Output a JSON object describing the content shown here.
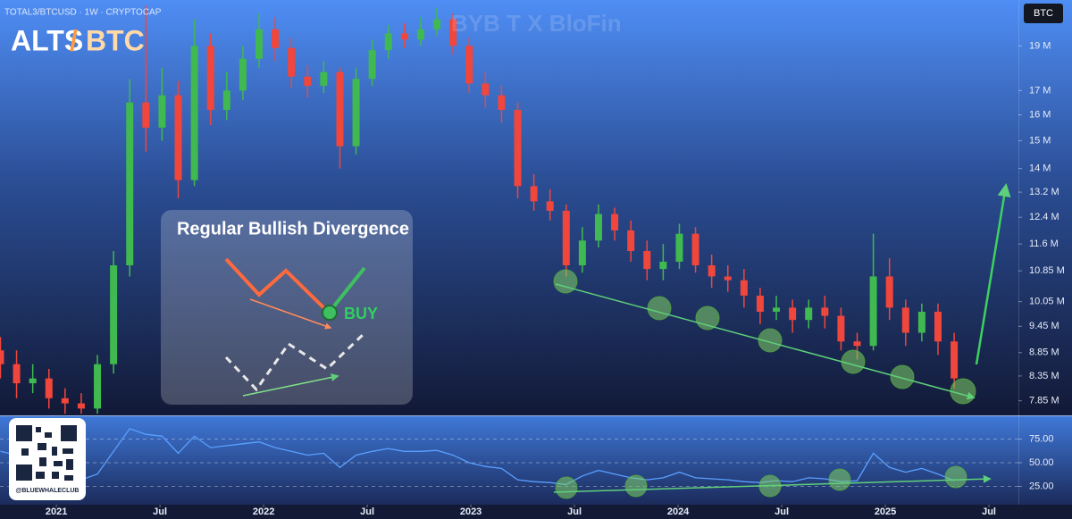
{
  "chart_data": [
    {
      "type": "candlestick",
      "title": "TOTAL3/BTCUSD · 1W · CRYPTOCAP",
      "badge": "BTC",
      "watermark": "BYB T X BloFin",
      "annotations": {
        "alts": "ALTS",
        "slash": "/",
        "btc": "BTC",
        "box_title": "Regular Bullish Divergence",
        "buy": "BUY",
        "handle": "@BLUEWHALECLUB"
      },
      "log_scale": true,
      "up_color": "#3fb950",
      "down_color": "#f0463c",
      "xlim": [
        2020.728,
        2025.642
      ],
      "xticks": [
        {
          "value": 2021,
          "label": "2021"
        },
        {
          "value": 2021.5,
          "label": "Jul"
        },
        {
          "value": 2022,
          "label": "2022"
        },
        {
          "value": 2022.5,
          "label": "Jul"
        },
        {
          "value": 2023,
          "label": "2023"
        },
        {
          "value": 2023.5,
          "label": "Jul"
        },
        {
          "value": 2024,
          "label": "2024"
        },
        {
          "value": 2024.5,
          "label": "Jul"
        },
        {
          "value": 2025,
          "label": "2025"
        },
        {
          "value": 2025.5,
          "label": "Jul"
        }
      ],
      "ylim": [
        7.57,
        21.3
      ],
      "yticks": [
        {
          "value": 19,
          "label": "19 M"
        },
        {
          "value": 17,
          "label": "17 M"
        },
        {
          "value": 16,
          "label": "16 M"
        },
        {
          "value": 15,
          "label": "15 M"
        },
        {
          "value": 14,
          "label": "14 M"
        },
        {
          "value": 13.2,
          "label": "13.2 M"
        },
        {
          "value": 12.4,
          "label": "12.4 M"
        },
        {
          "value": 11.6,
          "label": "11.6 M"
        },
        {
          "value": 10.85,
          "label": "10.85 M"
        },
        {
          "value": 10.05,
          "label": "10.05 M"
        },
        {
          "value": 9.45,
          "label": "9.45 M"
        },
        {
          "value": 8.85,
          "label": "8.85 M"
        },
        {
          "value": 8.35,
          "label": "8.35 M"
        },
        {
          "value": 7.85,
          "label": "7.85 M"
        }
      ],
      "x": [
        2020.73,
        2020.808,
        2020.886,
        2020.964,
        2021.042,
        2021.12,
        2021.198,
        2021.276,
        2021.354,
        2021.432,
        2021.51,
        2021.588,
        2021.666,
        2021.744,
        2021.822,
        2021.9,
        2021.978,
        2022.056,
        2022.134,
        2022.212,
        2022.29,
        2022.368,
        2022.446,
        2022.524,
        2022.602,
        2022.68,
        2022.758,
        2022.836,
        2022.914,
        2022.992,
        2023.07,
        2023.148,
        2023.226,
        2023.304,
        2023.382,
        2023.46,
        2023.538,
        2023.616,
        2023.694,
        2023.772,
        2023.85,
        2023.928,
        2024.006,
        2024.084,
        2024.162,
        2024.24,
        2024.318,
        2024.396,
        2024.474,
        2024.552,
        2024.63,
        2024.708,
        2024.786,
        2024.864,
        2024.942,
        2025.02,
        2025.098,
        2025.176,
        2025.254,
        2025.332
      ],
      "open": [
        8.9,
        8.6,
        8.2,
        8.3,
        7.9,
        7.8,
        7.7,
        8.6,
        11.0,
        16.5,
        15.5,
        16.8,
        13.6,
        19.0,
        16.2,
        17.0,
        18.4,
        19.8,
        18.9,
        17.6,
        17.2,
        17.8,
        14.8,
        17.5,
        18.8,
        19.6,
        19.3,
        19.8,
        20.3,
        19.0,
        17.3,
        16.8,
        16.2,
        13.4,
        12.9,
        12.6,
        11.0,
        11.7,
        12.5,
        12.0,
        11.4,
        10.9,
        11.1,
        11.9,
        11.0,
        10.7,
        10.6,
        10.2,
        9.8,
        9.9,
        9.6,
        9.9,
        9.7,
        9.1,
        9.0,
        10.7,
        9.9,
        9.3,
        9.8,
        9.1
      ],
      "high": [
        9.2,
        8.9,
        8.6,
        8.5,
        8.1,
        8.0,
        8.8,
        11.4,
        17.5,
        21.0,
        18.0,
        17.4,
        20.3,
        19.6,
        17.8,
        19.0,
        20.6,
        20.4,
        19.4,
        18.1,
        18.3,
        18.0,
        18.0,
        19.3,
        20.0,
        20.1,
        20.4,
        20.9,
        20.6,
        19.4,
        17.8,
        17.2,
        16.5,
        13.8,
        13.3,
        12.8,
        12.1,
        12.8,
        12.7,
        12.3,
        11.7,
        11.6,
        12.2,
        12.1,
        11.3,
        11.0,
        10.9,
        10.4,
        10.2,
        10.1,
        10.1,
        10.2,
        9.9,
        9.3,
        11.9,
        11.2,
        10.1,
        10.0,
        10.0,
        9.3
      ],
      "low": [
        8.3,
        7.9,
        8.0,
        7.7,
        7.6,
        7.6,
        7.6,
        8.4,
        10.7,
        14.6,
        15.0,
        13.0,
        13.4,
        15.6,
        15.8,
        16.6,
        18.0,
        18.3,
        17.1,
        16.7,
        16.9,
        14.0,
        14.5,
        17.2,
        18.4,
        18.9,
        19.0,
        19.5,
        18.6,
        16.9,
        16.3,
        15.7,
        13.0,
        12.6,
        12.3,
        10.7,
        10.8,
        11.5,
        11.7,
        11.1,
        10.6,
        10.6,
        10.9,
        10.8,
        10.4,
        10.3,
        9.9,
        9.5,
        9.6,
        9.3,
        9.4,
        9.4,
        8.9,
        8.7,
        8.9,
        9.6,
        9.0,
        9.1,
        8.8,
        8.1
      ],
      "close": [
        8.6,
        8.2,
        8.3,
        7.9,
        7.8,
        7.7,
        8.6,
        11.0,
        16.5,
        15.5,
        16.8,
        13.6,
        19.0,
        16.2,
        17.0,
        18.4,
        19.8,
        18.9,
        17.6,
        17.2,
        17.8,
        14.8,
        17.5,
        18.8,
        19.6,
        19.3,
        19.8,
        20.3,
        19.0,
        17.3,
        16.8,
        16.2,
        13.4,
        12.9,
        12.6,
        11.0,
        11.7,
        12.5,
        12.0,
        11.4,
        10.9,
        11.1,
        11.9,
        11.0,
        10.7,
        10.6,
        10.2,
        9.8,
        9.9,
        9.6,
        9.9,
        9.7,
        9.1,
        9.0,
        10.7,
        9.9,
        9.3,
        9.8,
        9.1,
        8.3
      ]
    },
    {
      "type": "line",
      "color": "#5aa0ff",
      "xlim": [
        2020.728,
        2025.642
      ],
      "ylim": [
        2.8,
        97.2
      ],
      "yticks": [
        {
          "value": 75,
          "label": "75.00"
        },
        {
          "value": 50,
          "label": "50.00"
        },
        {
          "value": 25,
          "label": "25.00"
        }
      ],
      "x": [
        2020.73,
        2020.808,
        2020.886,
        2020.964,
        2021.042,
        2021.12,
        2021.198,
        2021.276,
        2021.354,
        2021.432,
        2021.51,
        2021.588,
        2021.666,
        2021.744,
        2021.822,
        2021.9,
        2021.978,
        2022.056,
        2022.134,
        2022.212,
        2022.29,
        2022.368,
        2022.446,
        2022.524,
        2022.602,
        2022.68,
        2022.758,
        2022.836,
        2022.914,
        2022.992,
        2023.07,
        2023.148,
        2023.226,
        2023.304,
        2023.382,
        2023.46,
        2023.538,
        2023.616,
        2023.694,
        2023.772,
        2023.85,
        2023.928,
        2024.006,
        2024.084,
        2024.162,
        2024.24,
        2024.318,
        2024.396,
        2024.474,
        2024.552,
        2024.63,
        2024.708,
        2024.786,
        2024.864,
        2024.942,
        2025.02,
        2025.098,
        2025.176,
        2025.254,
        2025.332
      ],
      "values": [
        62,
        58,
        55,
        50,
        40,
        32,
        38,
        62,
        86,
        80,
        78,
        60,
        78,
        66,
        68,
        70,
        72,
        66,
        62,
        58,
        60,
        45,
        58,
        62,
        65,
        62,
        62,
        63,
        58,
        50,
        46,
        44,
        32,
        30,
        29,
        27,
        36,
        42,
        38,
        34,
        32,
        34,
        40,
        34,
        33,
        32,
        30,
        29,
        31,
        30,
        34,
        33,
        30,
        31,
        60,
        45,
        40,
        44,
        38,
        31
      ]
    }
  ]
}
